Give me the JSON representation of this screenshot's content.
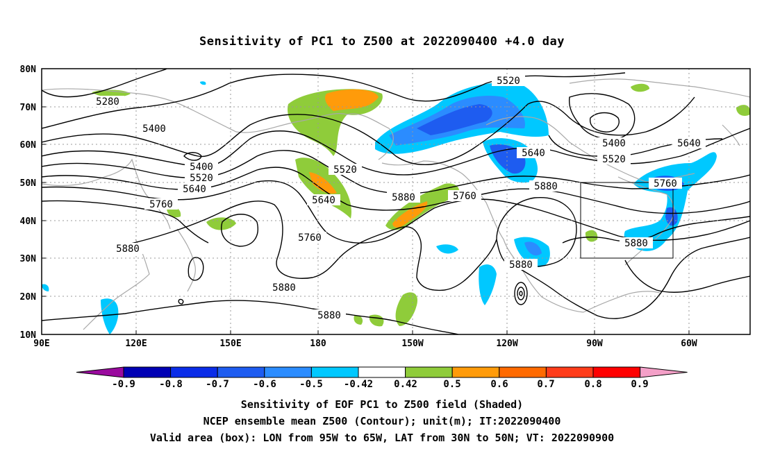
{
  "title": "Sensitivity of PC1 to Z500 at 2022090400 +4.0 day",
  "lat_labels": [
    "80N",
    "70N",
    "60N",
    "50N",
    "40N",
    "30N",
    "20N",
    "10N"
  ],
  "lon_labels": [
    "90E",
    "120E",
    "150E",
    "180",
    "150W",
    "120W",
    "90W",
    "60W"
  ],
  "contour_labels": [
    "5280",
    "5400",
    "5400",
    "5520",
    "5640",
    "5760",
    "5880",
    "5520",
    "5640",
    "5760",
    "5880",
    "5880",
    "5880",
    "5520",
    "5640",
    "5880",
    "5760",
    "5880",
    "5880",
    "5400",
    "5520",
    "5640",
    "5760",
    "5880"
  ],
  "colorbar": {
    "tick_labels": [
      "-0.9",
      "-0.8",
      "-0.7",
      "-0.6",
      "-0.5",
      "-0.42",
      "0.42",
      "0.5",
      "0.6",
      "0.7",
      "0.8",
      "0.9"
    ],
    "colors": [
      "#9a0a9e",
      "#0000b4",
      "#0a2ce8",
      "#1e5cf0",
      "#2b8cff",
      "#00c8ff",
      "#ffffff",
      "#8fcc3a",
      "#ff9b0a",
      "#ff6a00",
      "#ff3c1a",
      "#ff0000",
      "#f4a0c8"
    ]
  },
  "captions": [
    "Sensitivity of EOF PC1 to Z500 field (Shaded)",
    "NCEP ensemble mean Z500 (Contour); unit(m); IT:2022090400",
    "Valid area (box): LON from 95W to 65W, LAT from 30N to 50N; VT: 2022090900"
  ]
}
